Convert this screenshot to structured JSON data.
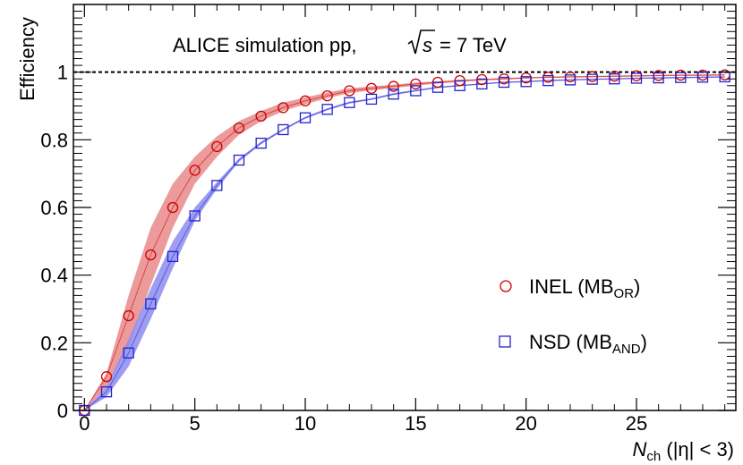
{
  "chart_data": {
    "type": "scatter",
    "annotation": "ALICE simulation pp,",
    "annotation_sqrt_s": "s",
    "annotation_energy": "= 7 TeV",
    "xlabel": {
      "main": "N",
      "sub": "ch",
      "suffix": "(|η| < 3)"
    },
    "ylabel": "Efficiency",
    "xlim": [
      -0.5,
      29.5
    ],
    "ylim": [
      0,
      1.2
    ],
    "x_ticks": [
      0,
      5,
      10,
      15,
      20,
      25
    ],
    "x_tick_labels": [
      "0",
      "5",
      "10",
      "15",
      "20",
      "25"
    ],
    "y_ticks": [
      0,
      0.2,
      0.4,
      0.6,
      0.8,
      1
    ],
    "y_tick_labels": [
      "0",
      "0.2",
      "0.4",
      "0.6",
      "0.8",
      "1"
    ],
    "reference_line": 1,
    "series": [
      {
        "name": "INEL",
        "legend_main": "INEL (MB",
        "legend_sub": "OR",
        "legend_end": ")",
        "marker": "circle",
        "color": "#cc0000",
        "band_color": "#e88a8a",
        "x": [
          0,
          1,
          2,
          3,
          4,
          5,
          6,
          7,
          8,
          9,
          10,
          11,
          12,
          13,
          14,
          15,
          16,
          17,
          18,
          19,
          20,
          21,
          22,
          23,
          24,
          25,
          26,
          27,
          28,
          29
        ],
        "values": [
          0.0,
          0.1,
          0.28,
          0.46,
          0.6,
          0.71,
          0.78,
          0.835,
          0.87,
          0.895,
          0.915,
          0.93,
          0.945,
          0.952,
          0.958,
          0.965,
          0.97,
          0.975,
          0.978,
          0.98,
          0.983,
          0.985,
          0.986,
          0.987,
          0.988,
          0.989,
          0.99,
          0.991,
          0.991,
          0.992
        ],
        "band_low": [
          0.0,
          0.07,
          0.19,
          0.37,
          0.54,
          0.67,
          0.75,
          0.815,
          0.855,
          0.885,
          0.905,
          0.923,
          0.938,
          0.946,
          0.953,
          0.96,
          0.966,
          0.971,
          0.975,
          0.978,
          0.981,
          0.983,
          0.984,
          0.985,
          0.986,
          0.987,
          0.988,
          0.989,
          0.989,
          0.99
        ],
        "band_high": [
          0.0,
          0.11,
          0.34,
          0.54,
          0.67,
          0.75,
          0.81,
          0.855,
          0.885,
          0.91,
          0.925,
          0.94,
          0.952,
          0.958,
          0.963,
          0.969,
          0.973,
          0.977,
          0.98,
          0.983,
          0.985,
          0.987,
          0.988,
          0.989,
          0.99,
          0.991,
          0.992,
          0.993,
          0.993,
          0.994
        ]
      },
      {
        "name": "NSD",
        "legend_main": "NSD (MB",
        "legend_sub": "AND",
        "legend_end": ")",
        "marker": "square",
        "color": "#2222cc",
        "band_color": "#8c8cf0",
        "x": [
          0,
          1,
          2,
          3,
          4,
          5,
          6,
          7,
          8,
          9,
          10,
          11,
          12,
          13,
          14,
          15,
          16,
          17,
          18,
          19,
          20,
          21,
          22,
          23,
          24,
          25,
          26,
          27,
          28,
          29
        ],
        "values": [
          0.0,
          0.055,
          0.17,
          0.315,
          0.455,
          0.575,
          0.665,
          0.74,
          0.79,
          0.83,
          0.865,
          0.89,
          0.91,
          0.92,
          0.935,
          0.945,
          0.955,
          0.96,
          0.965,
          0.97,
          0.972,
          0.975,
          0.977,
          0.979,
          0.98,
          0.982,
          0.983,
          0.984,
          0.985,
          0.986
        ],
        "band_low": [
          0.0,
          0.04,
          0.13,
          0.27,
          0.42,
          0.56,
          0.655,
          0.735,
          0.787,
          0.827,
          0.862,
          0.887,
          0.907,
          0.918,
          0.932,
          0.943,
          0.953,
          0.958,
          0.963,
          0.968,
          0.97,
          0.973,
          0.975,
          0.977,
          0.978,
          0.98,
          0.981,
          0.982,
          0.983,
          0.984
        ],
        "band_high": [
          0.0,
          0.07,
          0.21,
          0.36,
          0.5,
          0.6,
          0.675,
          0.745,
          0.795,
          0.833,
          0.868,
          0.893,
          0.913,
          0.923,
          0.938,
          0.948,
          0.957,
          0.962,
          0.967,
          0.972,
          0.974,
          0.977,
          0.979,
          0.981,
          0.982,
          0.984,
          0.985,
          0.986,
          0.987,
          0.988
        ]
      }
    ]
  }
}
